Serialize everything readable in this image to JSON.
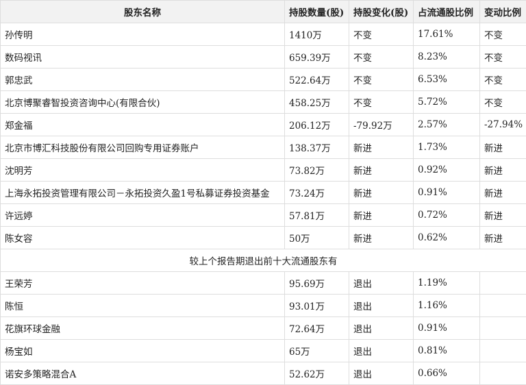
{
  "headers": [
    "股东名称",
    "持股数量(股)",
    "持股变化(股)",
    "占流通股比例",
    "变动比例"
  ],
  "rows": [
    [
      "孙传明",
      "1410万",
      "不变",
      "17.61%",
      "不变"
    ],
    [
      "数码视讯",
      "659.39万",
      "不变",
      "8.23%",
      "不变"
    ],
    [
      "郭忠武",
      "522.64万",
      "不变",
      "6.53%",
      "不变"
    ],
    [
      "北京博聚睿智投资咨询中心(有限合伙)",
      "458.25万",
      "不变",
      "5.72%",
      "不变"
    ],
    [
      "郑金福",
      "206.12万",
      "-79.92万",
      "2.57%",
      "-27.94%"
    ],
    [
      "北京市博汇科技股份有限公司回购专用证券账户",
      "138.37万",
      "新进",
      "1.73%",
      "新进"
    ],
    [
      "沈明芳",
      "73.82万",
      "新进",
      "0.92%",
      "新进"
    ],
    [
      "上海永拓投资管理有限公司－永拓投资久盈1号私募证券投资基金",
      "73.24万",
      "新进",
      "0.91%",
      "新进"
    ],
    [
      "许远婷",
      "57.81万",
      "新进",
      "0.72%",
      "新进"
    ],
    [
      "陈女容",
      "50万",
      "新进",
      "0.62%",
      "新进"
    ]
  ],
  "exit_label": "较上个报告期退出前十大流通股东有",
  "exit_rows": [
    [
      "王荣芳",
      "95.69万",
      "退出",
      "1.19%",
      ""
    ],
    [
      "陈恒",
      "93.01万",
      "退出",
      "1.16%",
      ""
    ],
    [
      "花旗环球金融",
      "72.64万",
      "退出",
      "0.91%",
      ""
    ],
    [
      "杨宝如",
      "65万",
      "退出",
      "0.81%",
      ""
    ],
    [
      "诺安多策略混合A",
      "52.62万",
      "退出",
      "0.66%",
      ""
    ]
  ]
}
